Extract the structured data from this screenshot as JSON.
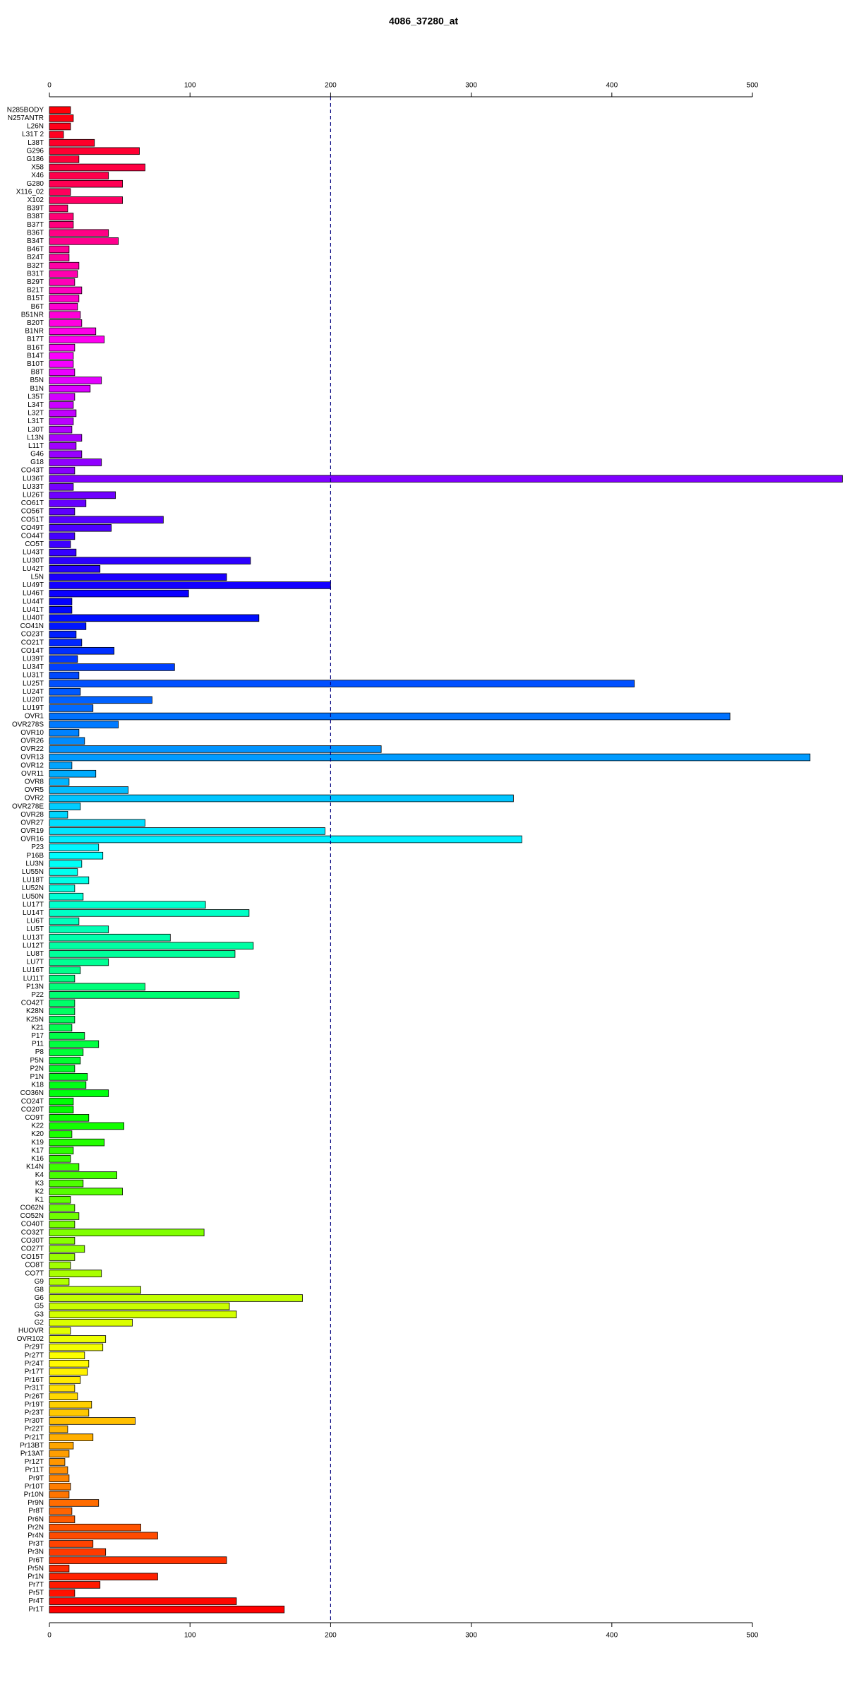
{
  "chart_data": {
    "type": "barh",
    "title": "4086_37280_at",
    "categories": [
      "N285BODY",
      "N257ANTR",
      "L26N",
      "L31T 2",
      "L38T",
      "G296",
      "G186",
      "X58",
      "X46",
      "G280",
      "X116_02",
      "X102",
      "B39T",
      "B38T",
      "B37T",
      "B36T",
      "B34T",
      "B46T",
      "B24T",
      "B32T",
      "B31T",
      "B29T",
      "B21T",
      "B15T",
      "B6T",
      "B51NR",
      "B20T",
      "B1NR",
      "B17T",
      "B16T",
      "B14T",
      "B10T",
      "B8T",
      "B5N",
      "B1N",
      "L35T",
      "L34T",
      "L32T",
      "L31T",
      "L30T",
      "L13N",
      "L11T",
      "G46",
      "G18",
      "CO43T",
      "LU36T",
      "LU33T",
      "LU26T",
      "CO61T",
      "CO56T",
      "CO51T",
      "CO49T",
      "CO44T",
      "CO5T",
      "LU43T",
      "LU30T",
      "LU42T",
      "L5N",
      "LU49T",
      "LU46T",
      "LU44T",
      "LU41T",
      "LU40T",
      "CO41N",
      "CO23T",
      "CO21T",
      "CO14T",
      "LU39T",
      "LU34T",
      "LU31T",
      "LU25T",
      "LU24T",
      "LU20T",
      "LU19T",
      "OVR1",
      "OVR278S",
      "OVR10",
      "OVR26",
      "OVR22",
      "OVR13",
      "OVR12",
      "OVR11",
      "OVR8",
      "OVR5",
      "OVR2",
      "OVR278E",
      "OVR28",
      "OVR27",
      "OVR19",
      "OVR16",
      "P23",
      "P16B",
      "LU3N",
      "LU55N",
      "LU18T",
      "LU52N",
      "LU50N",
      "LU17T",
      "LU14T",
      "LU6T",
      "LU5T",
      "LU13T",
      "LU12T",
      "LU8T",
      "LU7T",
      "LU16T",
      "LU11T",
      "P13N",
      "P22",
      "CO42T",
      "K28N",
      "K25N",
      "K21",
      "P17",
      "P11",
      "P8",
      "P5N",
      "P2N",
      "P1N",
      "K18",
      "CO36N",
      "CO24T",
      "CO20T",
      "CO9T",
      "K22",
      "K20",
      "K19",
      "K17",
      "K16",
      "K14N",
      "K4",
      "K3",
      "K2",
      "K1",
      "CO62N",
      "CO52N",
      "CO40T",
      "CO32T",
      "CO30T",
      "CO27T",
      "CO15T",
      "CO8T",
      "CO7T",
      "G9",
      "G8",
      "G6",
      "G5",
      "G3",
      "G2",
      "HUOVR",
      "OVR102",
      "Pr29T",
      "Pr27T",
      "Pr24T",
      "Pr17T",
      "Pr16T",
      "Pr31T",
      "Pr26T",
      "Pr19T",
      "Pr23T",
      "Pr30T",
      "Pr22T",
      "Pr21T",
      "Pr13BT",
      "Pr13AT",
      "Pr12T",
      "Pr11T",
      "Pr9T",
      "Pr10T",
      "Pr10N",
      "Pr9N",
      "Pr8T",
      "Pr6N",
      "Pr2N",
      "Pr4N",
      "Pr3T",
      "Pr3N",
      "Pr6T",
      "Pr5N",
      "Pr1N",
      "Pr7T",
      "Pr5T",
      "Pr4T",
      "Pr1T"
    ],
    "values": [
      15,
      17,
      15,
      10,
      32,
      64,
      21,
      68,
      42,
      52,
      15,
      52,
      13,
      17,
      17,
      42,
      49,
      14,
      14,
      21,
      20,
      18,
      23,
      21,
      20,
      22,
      23,
      33,
      39,
      18,
      17,
      17,
      18,
      37,
      29,
      18,
      17,
      19,
      17,
      16,
      23,
      19,
      23,
      37,
      18,
      564,
      17,
      47,
      26,
      18,
      81,
      44,
      18,
      15,
      19,
      143,
      36,
      126,
      200,
      99,
      16,
      16,
      149,
      26,
      19,
      23,
      46,
      20,
      89,
      21,
      416,
      22,
      73,
      31,
      484,
      49,
      21,
      25,
      236,
      541,
      16,
      33,
      14,
      56,
      330,
      22,
      13,
      68,
      196,
      336,
      35,
      38,
      23,
      20,
      28,
      18,
      24,
      111,
      142,
      21,
      42,
      86,
      145,
      132,
      42,
      22,
      18,
      68,
      135,
      18,
      18,
      18,
      16,
      25,
      35,
      24,
      22,
      18,
      27,
      26,
      42,
      17,
      17,
      28,
      53,
      16,
      39,
      17,
      15,
      21,
      48,
      24,
      52,
      15,
      18,
      21,
      18,
      110,
      18,
      25,
      18,
      15,
      37,
      14,
      65,
      180,
      128,
      133,
      59,
      15,
      40,
      38,
      25,
      28,
      27,
      22,
      18,
      20,
      30,
      28,
      61,
      13,
      31,
      17,
      14,
      11,
      13,
      14,
      15,
      14,
      35,
      16,
      18,
      65,
      77,
      31,
      40,
      126,
      14,
      77,
      36,
      18,
      133,
      167
    ],
    "xlim": [
      0,
      565
    ],
    "xticks": [
      0,
      100,
      200,
      300,
      400,
      500
    ],
    "refline": 200,
    "refline_color": "#000080"
  }
}
